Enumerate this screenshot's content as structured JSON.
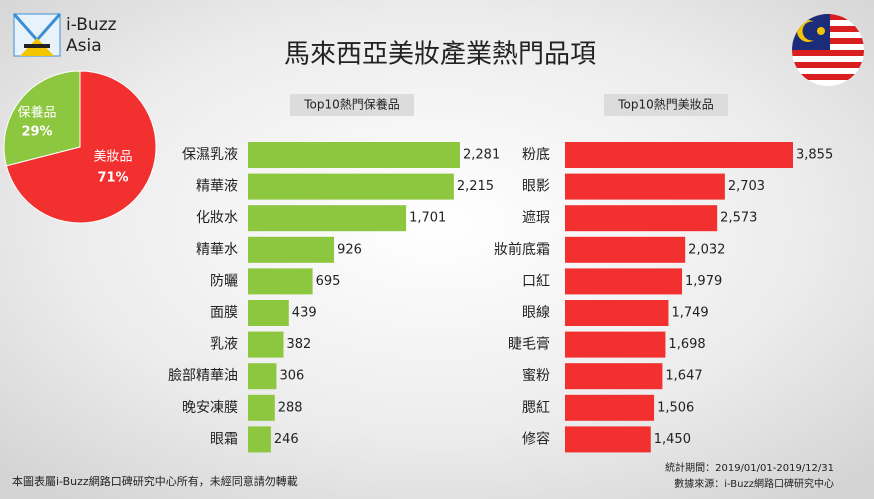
{
  "header": {
    "logo_line1": "i-Buzz",
    "logo_line2": "Asia",
    "title": "馬來西亞美妝產業熱門品項"
  },
  "chart_data": [
    {
      "type": "pie",
      "categories": [
        "保養品",
        "美妝品"
      ],
      "values": [
        29,
        71
      ],
      "value_labels": [
        "29%",
        "71%"
      ],
      "colors": [
        "#8dc63f",
        "#f23030"
      ]
    },
    {
      "type": "bar",
      "title": "Top10熱門保養品",
      "categories": [
        "保濕乳液",
        "精華液",
        "化妝水",
        "精華水",
        "防曬",
        "面膜",
        "乳液",
        "臉部精華油",
        "晚安凍膜",
        "眼霜"
      ],
      "values": [
        2281,
        2215,
        1701,
        926,
        695,
        439,
        382,
        306,
        288,
        246
      ],
      "value_labels": [
        "2,281",
        "2,215",
        "1,701",
        "926",
        "695",
        "439",
        "382",
        "306",
        "288",
        "246"
      ],
      "color": "#8dc63f"
    },
    {
      "type": "bar",
      "title": "Top10熱門美妝品",
      "categories": [
        "粉底",
        "眼影",
        "遮瑕",
        "妝前底霜",
        "口紅",
        "眼線",
        "睫毛膏",
        "蜜粉",
        "腮紅",
        "修容"
      ],
      "values": [
        3855,
        2703,
        2573,
        2032,
        1979,
        1749,
        1698,
        1647,
        1506,
        1450
      ],
      "value_labels": [
        "3,855",
        "2,703",
        "2,573",
        "2,032",
        "1,979",
        "1,749",
        "1,698",
        "1,647",
        "1,506",
        "1,450"
      ],
      "color": "#f23030"
    }
  ],
  "footer": {
    "copyright": "本圖表屬i-Buzz網路口碑研究中心所有，未經同意請勿轉載",
    "period": "統計期間：2019/01/01-2019/12/31",
    "source": "數據來源：i-Buzz網路口碑研究中心"
  }
}
